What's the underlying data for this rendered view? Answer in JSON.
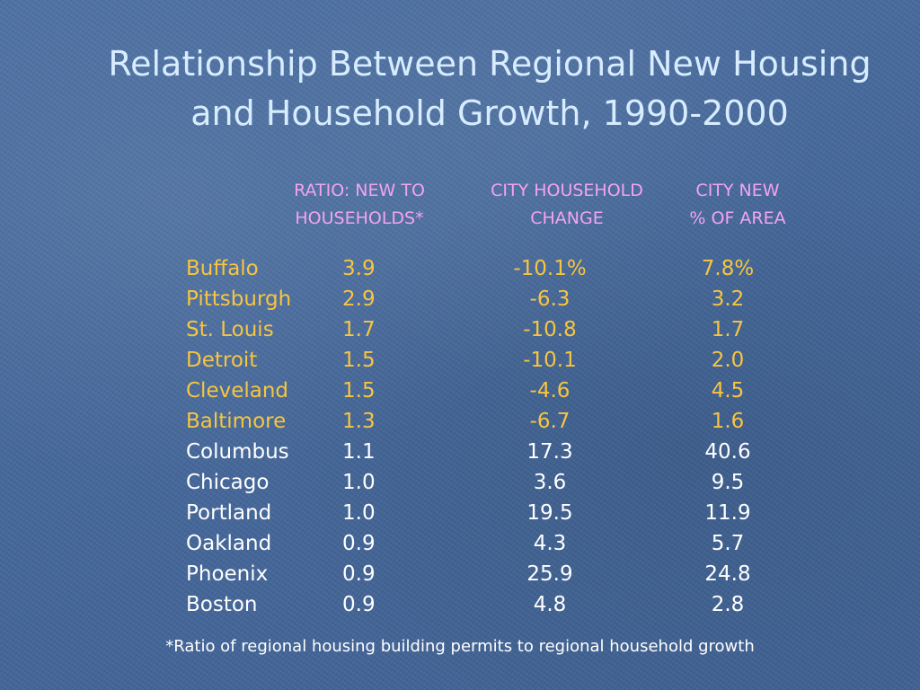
{
  "title": {
    "line1": "Relationship Between Regional New Housing",
    "line2": "and Household Growth, 1990-2000"
  },
  "headers": {
    "ratio_line1": "RATIO: NEW TO",
    "ratio_line2": "HOUSEHOLDS*",
    "change_line1": "CITY HOUSEHOLD",
    "change_line2": "CHANGE",
    "area_line1": "CITY NEW",
    "area_line2": "% OF AREA"
  },
  "rows": [
    {
      "city": "Buffalo",
      "ratio": "3.9",
      "change": "-10.1%",
      "area": "7.8%",
      "highlight": true
    },
    {
      "city": "Pittsburgh",
      "ratio": "2.9",
      "change": "-6.3",
      "area": "3.2",
      "highlight": true
    },
    {
      "city": "St. Louis",
      "ratio": "1.7",
      "change": "-10.8",
      "area": "1.7",
      "highlight": true
    },
    {
      "city": "Detroit",
      "ratio": "1.5",
      "change": "-10.1",
      "area": "2.0",
      "highlight": true
    },
    {
      "city": "Cleveland",
      "ratio": "1.5",
      "change": "-4.6",
      "area": "4.5",
      "highlight": true
    },
    {
      "city": "Baltimore",
      "ratio": "1.3",
      "change": "-6.7",
      "area": "1.6",
      "highlight": true
    },
    {
      "city": "Columbus",
      "ratio": "1.1",
      "change": "17.3",
      "area": "40.6",
      "highlight": false
    },
    {
      "city": "Chicago",
      "ratio": "1.0",
      "change": "3.6",
      "area": "9.5",
      "highlight": false
    },
    {
      "city": "Portland",
      "ratio": "1.0",
      "change": "19.5",
      "area": "11.9",
      "highlight": false
    },
    {
      "city": "Oakland",
      "ratio": "0.9",
      "change": "4.3",
      "area": "5.7",
      "highlight": false
    },
    {
      "city": "Phoenix",
      "ratio": "0.9",
      "change": "25.9",
      "area": "24.8",
      "highlight": false
    },
    {
      "city": "Boston",
      "ratio": "0.9",
      "change": "4.8",
      "area": "2.8",
      "highlight": false
    }
  ],
  "footnote": "*Ratio of regional housing building permits to regional household growth",
  "colors": {
    "background": "#46699b",
    "title": "#d7ecff",
    "header": "#f2a4ee",
    "highlight_row": "#f7c540",
    "normal_row": "#ffffff"
  }
}
